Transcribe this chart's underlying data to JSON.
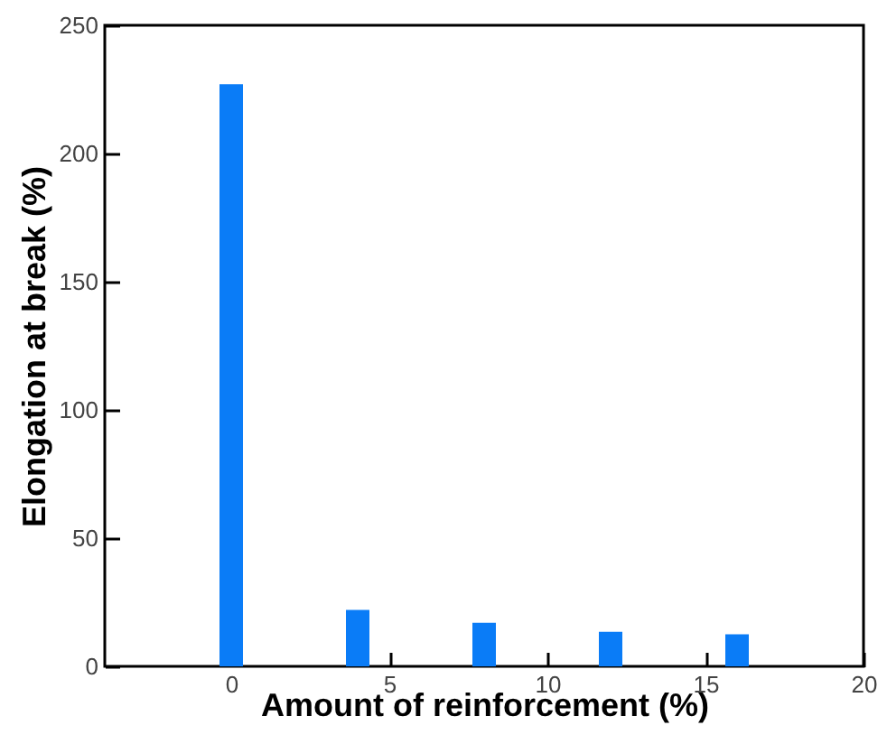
{
  "chart_data": {
    "type": "bar",
    "xlabel": "Amount of reinforcement (%)",
    "ylabel": "Elongation at break (%)",
    "x": [
      0,
      4,
      8,
      12,
      16
    ],
    "values": [
      227,
      22,
      17,
      13.5,
      12.5
    ],
    "color": "#0a7cf7",
    "xlim": [
      -4,
      20
    ],
    "xticks": [
      0,
      5,
      10,
      15,
      20
    ],
    "ylim": [
      0,
      250
    ],
    "yticks": [
      0,
      50,
      100,
      150,
      200,
      250
    ],
    "grid": false
  }
}
